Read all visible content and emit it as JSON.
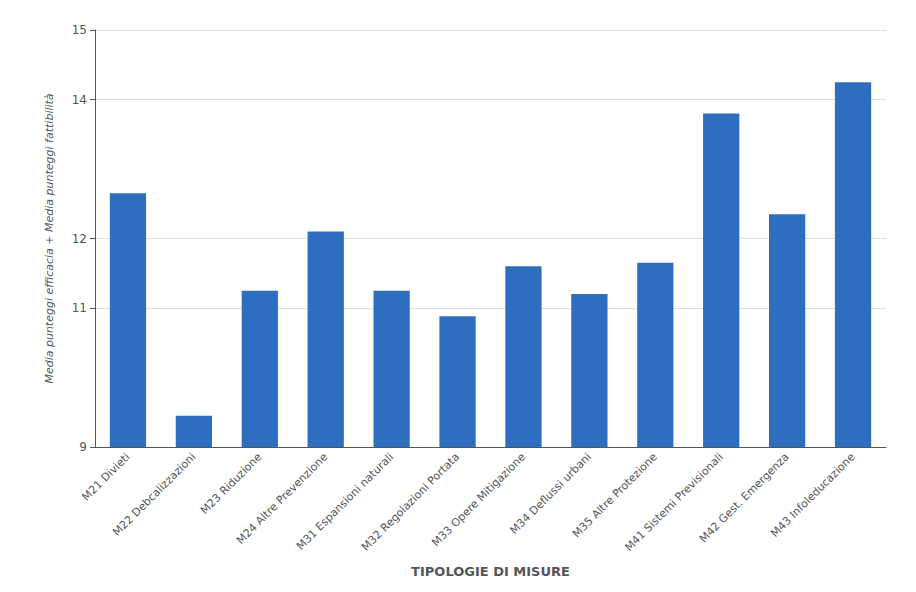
{
  "chart_data": {
    "type": "bar",
    "categories": [
      "M21 Divieti",
      "M22 Debcalizzazioni",
      "M23 Riduzione",
      "M24 Altre Prevenzione",
      "M31 Espansioni naturali",
      "M32 Regolazioni Portata",
      "M33 Opere Mitigazione",
      "M34 Deflussi urbani",
      "M35 Altre Protezione",
      "M41 Sistemi Previsionali",
      "M42 Gest. Emergenza",
      "M43 Infoleducazione"
    ],
    "values": [
      12.65,
      9.45,
      11.25,
      12.1,
      11.25,
      10.88,
      11.6,
      11.2,
      11.65,
      13.8,
      12.35,
      14.25
    ],
    "color": "#2E6EBF",
    "xlabel": "TIPOLOGIE DI MISURE",
    "ylabel": "Media punteggi efficacia + Media punteggi fattibilità",
    "ylim": [
      9,
      15
    ],
    "yticks": [
      9,
      11,
      12,
      14,
      15
    ],
    "grid": true
  }
}
